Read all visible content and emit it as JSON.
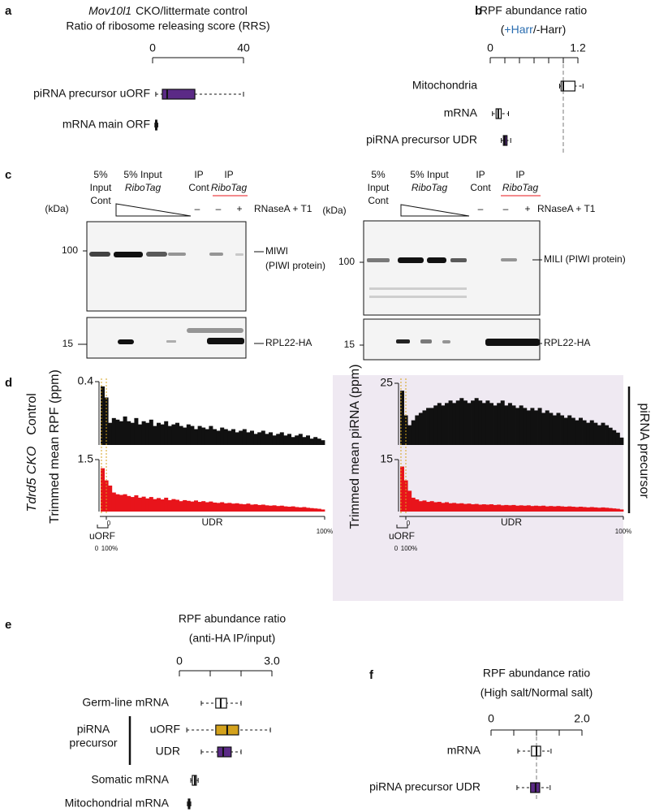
{
  "panel_letters": [
    "a",
    "b",
    "c",
    "d",
    "e",
    "f"
  ],
  "chart_data": [
    {
      "type": "box",
      "title_parts": [
        "Mov10l1",
        "CKO/littermate control"
      ],
      "subtitle": "Ratio of ribosome releasing score (RRS)",
      "xlim": [
        0,
        40
      ],
      "xticks": [
        0,
        40
      ],
      "categories": [
        "piRNA precursor uORF",
        "mRNA main ORF"
      ],
      "category_colors": [
        "#5b2a86",
        "#111111"
      ],
      "box_colors": [
        "#5b2a86",
        "#ffffff"
      ],
      "boxes": [
        {
          "whislo": 1.4,
          "q1": 4.3,
          "med": 6.4,
          "q3": 18.6,
          "whishi": 40
        },
        {
          "whislo": 1.0,
          "q1": 1.3,
          "med": 1.6,
          "q3": 1.9,
          "whishi": 2.3
        }
      ]
    },
    {
      "type": "box",
      "title": "RPF abundance ratio",
      "subtitle_parts": [
        "(",
        "+Harr",
        "/-Harr)"
      ],
      "subtitle_colors": [
        "#111111",
        "#2a6db0",
        "#111111"
      ],
      "xlim": [
        0,
        1.2
      ],
      "xticks": [
        0,
        1.2
      ],
      "xminorticks": [
        0.2,
        0.4,
        0.6,
        0.8,
        1.0
      ],
      "refline": 1.0,
      "categories": [
        "Mitochondria",
        "mRNA",
        "piRNA precursor UDR"
      ],
      "category_colors": [
        "#111111",
        "#111111",
        "#5b2a86"
      ],
      "box_colors": [
        "#ffffff",
        "#ffffff",
        "#5b2a86"
      ],
      "boxes": [
        {
          "whislo": 0.95,
          "q1": 0.97,
          "med": 1.0,
          "q3": 1.16,
          "whishi": 1.27
        },
        {
          "whislo": 0.03,
          "q1": 0.08,
          "med": 0.11,
          "q3": 0.15,
          "whishi": 0.25
        },
        {
          "whislo": 0.15,
          "q1": 0.18,
          "med": 0.2,
          "q3": 0.23,
          "whishi": 0.28
        }
      ]
    },
    {
      "type": "box",
      "title": "RPF abundance ratio",
      "subtitle": "(anti-HA IP/input)",
      "xlim": [
        0,
        3
      ],
      "xticks": [
        0,
        {
          "value": 3,
          "label": "3.0"
        }
      ],
      "xminorticks": [
        1,
        2
      ],
      "categories": [
        "Germ-line mRNA",
        "uORF",
        "UDR",
        "Somatic mRNA",
        "Mitochondrial mRNA"
      ],
      "category_colors": [
        "#111111",
        "#d4a21c",
        "#5b2a86",
        "#111111",
        "#111111"
      ],
      "box_colors": [
        "#ffffff",
        "#d4a21c",
        "#5b2a86",
        "#ffffff",
        "#ffffff"
      ],
      "group_label": [
        "piRNA",
        "precursor"
      ],
      "boxes": [
        {
          "whislo": 0.71,
          "q1": 1.18,
          "med": 1.34,
          "q3": 1.53,
          "whishi": 2.0
        },
        {
          "whislo": 0.24,
          "q1": 1.18,
          "med": 1.55,
          "q3": 1.92,
          "whishi": 2.95
        },
        {
          "whislo": 0.71,
          "q1": 1.24,
          "med": 1.42,
          "q3": 1.68,
          "whishi": 2.0
        },
        {
          "whislo": 0.37,
          "q1": 0.42,
          "med": 0.5,
          "q3": 0.55,
          "whishi": 0.61
        },
        {
          "whislo": 0.26,
          "q1": 0.29,
          "med": 0.32,
          "q3": 0.34,
          "whishi": 0.37
        }
      ]
    },
    {
      "type": "box",
      "title": "RPF abundance ratio",
      "subtitle": "(High salt/Normal salt)",
      "xlim": [
        0,
        2
      ],
      "xticks": [
        0,
        {
          "value": 2,
          "label": "2.0"
        }
      ],
      "xminorticks": [
        0.5,
        1.0,
        1.5
      ],
      "refline": 1.0,
      "categories": [
        "mRNA",
        "piRNA precursor UDR"
      ],
      "category_colors": [
        "#111111",
        "#5b2a86"
      ],
      "box_colors": [
        "#ffffff",
        "#5b2a86"
      ],
      "boxes": [
        {
          "whislo": 0.59,
          "q1": 0.89,
          "med": 1.0,
          "q3": 1.09,
          "whishi": 1.32
        },
        {
          "whislo": 0.57,
          "q1": 0.87,
          "med": 0.98,
          "q3": 1.07,
          "whishi": 1.3
        }
      ]
    },
    {
      "type": "bar",
      "row_label": "Control",
      "ylabel": "Trimmed mean RPF (ppm)",
      "color": "#111111",
      "ylim": [
        0,
        0.4
      ],
      "yticks": [
        0.4
      ],
      "values": [
        0.37,
        0.3,
        0.14,
        0.17,
        0.16,
        0.15,
        0.18,
        0.15,
        0.14,
        0.17,
        0.13,
        0.15,
        0.14,
        0.16,
        0.12,
        0.14,
        0.13,
        0.15,
        0.12,
        0.13,
        0.14,
        0.12,
        0.11,
        0.13,
        0.12,
        0.1,
        0.12,
        0.11,
        0.1,
        0.12,
        0.1,
        0.09,
        0.11,
        0.1,
        0.09,
        0.1,
        0.08,
        0.09,
        0.1,
        0.08,
        0.09,
        0.07,
        0.08,
        0.09,
        0.07,
        0.08,
        0.06,
        0.07,
        0.08,
        0.06,
        0.07,
        0.05,
        0.06,
        0.07,
        0.05,
        0.06,
        0.04,
        0.05,
        0.04,
        0.03
      ]
    },
    {
      "type": "bar",
      "row_label": "Tdrd5 CKO",
      "color": "#e8141b",
      "ylim": [
        0,
        1.5
      ],
      "yticks": [
        1.5
      ],
      "values": [
        1.25,
        0.9,
        0.75,
        0.55,
        0.5,
        0.48,
        0.5,
        0.45,
        0.42,
        0.47,
        0.4,
        0.43,
        0.38,
        0.42,
        0.36,
        0.39,
        0.35,
        0.4,
        0.33,
        0.36,
        0.34,
        0.3,
        0.33,
        0.31,
        0.29,
        0.32,
        0.28,
        0.3,
        0.27,
        0.29,
        0.26,
        0.25,
        0.27,
        0.24,
        0.25,
        0.23,
        0.24,
        0.22,
        0.21,
        0.23,
        0.2,
        0.21,
        0.19,
        0.2,
        0.18,
        0.17,
        0.18,
        0.16,
        0.17,
        0.15,
        0.14,
        0.15,
        0.13,
        0.12,
        0.13,
        0.11,
        0.1,
        0.09,
        0.08,
        0.06
      ]
    },
    {
      "type": "bar",
      "ylabel": "Trimmed mean piRNA (ppm)",
      "color": "#111111",
      "ylim": [
        0,
        25
      ],
      "yticks": [
        25
      ],
      "values": [
        22,
        12,
        8,
        10,
        12,
        13,
        14,
        15,
        15,
        16,
        17,
        16,
        17,
        18,
        17,
        18,
        19,
        18,
        17,
        18,
        19,
        18,
        17,
        18,
        17,
        16,
        17,
        18,
        16,
        17,
        16,
        15,
        16,
        15,
        14,
        15,
        14,
        15,
        13,
        14,
        13,
        12,
        13,
        12,
        11,
        12,
        11,
        10,
        11,
        10,
        9,
        10,
        9,
        8,
        9,
        8,
        7,
        6,
        5,
        3
      ]
    },
    {
      "type": "bar",
      "color": "#e8141b",
      "ylim": [
        0,
        15
      ],
      "yticks": [
        15
      ],
      "values": [
        13,
        9,
        6,
        4,
        3.5,
        3,
        3.2,
        2.8,
        3,
        2.7,
        2.8,
        2.5,
        2.7,
        2.4,
        2.5,
        2.3,
        2.4,
        2.2,
        2.3,
        2.1,
        2.2,
        2,
        2.1,
        2,
        2.1,
        1.9,
        2,
        1.8,
        1.9,
        1.8,
        1.9,
        1.7,
        1.8,
        1.7,
        1.8,
        1.6,
        1.7,
        1.6,
        1.7,
        1.5,
        1.6,
        1.5,
        1.6,
        1.5,
        1.4,
        1.5,
        1.4,
        1.3,
        1.4,
        1.3,
        1.2,
        1.3,
        1.2,
        1.1,
        1.2,
        1.1,
        1,
        0.9,
        0.8,
        0.6
      ]
    }
  ],
  "panel_c": {
    "left": {
      "lanes": [
        [
          "5%",
          "Input",
          "Cont"
        ],
        [
          "5% Input",
          "RiboTag"
        ],
        [
          "IP",
          "Cont"
        ],
        [
          "IP",
          "RiboTag"
        ]
      ],
      "treatment": [
        "–",
        "–",
        "+"
      ],
      "treatment_label": "RNaseA + T1",
      "kda": "(kDa)",
      "markers": [
        "100",
        "15"
      ],
      "bands": [
        [
          "MIWI",
          "(PIWI protein)"
        ],
        [
          "RPL22-HA"
        ]
      ]
    },
    "right": {
      "lanes": [
        [
          "5%",
          "Input",
          "Cont"
        ],
        [
          "5% Input",
          "RiboTag"
        ],
        [
          "IP",
          "Cont"
        ],
        [
          "IP",
          "RiboTag"
        ]
      ],
      "treatment": [
        "–",
        "–",
        "+"
      ],
      "treatment_label": "RNaseA + T1",
      "kda": "(kDa)",
      "markers": [
        "100",
        "15"
      ],
      "bands": [
        [
          "MILI (PIWI protein)"
        ],
        [
          "RPL22-HA"
        ]
      ]
    }
  },
  "panel_d": {
    "x_axis": {
      "uorf": "uORF",
      "uorf_range": [
        "0",
        "100%"
      ],
      "udr": "UDR",
      "udr_range": [
        "0",
        "100%"
      ]
    },
    "side_label": "piRNA precursor"
  }
}
